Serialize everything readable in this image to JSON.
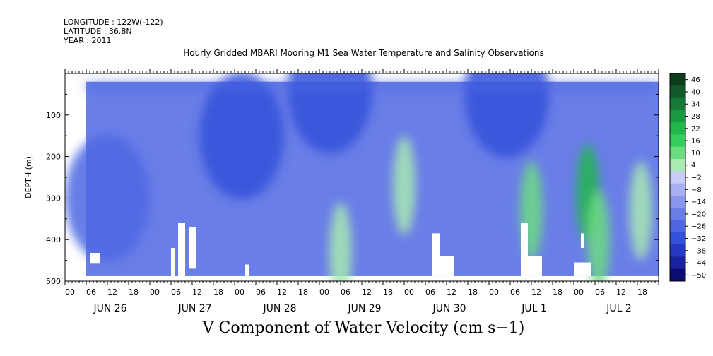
{
  "header": {
    "longitude": "LONGITUDE : 122W(-122)",
    "latitude": "LATITUDE : 36.8N",
    "year": "YEAR : 2011"
  },
  "chart_data": {
    "type": "heatmap",
    "title": "Hourly Gridded MBARI Mooring M1 Sea Water Temperature and Salinity Observations",
    "caption": "V Component of Water Velocity (cm s−1)",
    "ylabel": "DEPTH (m)",
    "xlabel": "",
    "ylim": [
      0,
      500
    ],
    "y_axis_inverted": true,
    "y_tick_values": [
      100,
      200,
      300,
      400,
      500
    ],
    "y_tick_labels": [
      "100",
      "200",
      "300",
      "400",
      "500"
    ],
    "x_range_hours": [
      0,
      168
    ],
    "x_hour_labels": [
      "00",
      "06",
      "12",
      "18",
      "00",
      "06",
      "12",
      "18",
      "00",
      "06",
      "12",
      "18",
      "00",
      "06",
      "12",
      "18",
      "00",
      "06",
      "12",
      "18",
      "00",
      "06",
      "12",
      "18",
      "00",
      "06",
      "12",
      "18"
    ],
    "x_day_labels": [
      "JUN 26",
      "JUN 27",
      "JUN 28",
      "JUN 29",
      "JUN 30",
      "JUL  1",
      "JUL  2"
    ],
    "data_extent": {
      "depth_min": 20,
      "depth_max": 488,
      "hour_start": 6,
      "hour_end": 168
    },
    "colorbar": {
      "labels": [
        "46",
        "40",
        "34",
        "28",
        "22",
        "16",
        "10",
        "4",
        "−2",
        "−8",
        "−14",
        "−20",
        "−26",
        "−32",
        "−38",
        "−44",
        "−50"
      ],
      "min": -50,
      "max": 46
    },
    "features": [
      {
        "kind": "positive",
        "hour": 148,
        "depth": 290,
        "strength": 20
      },
      {
        "kind": "positive",
        "hour": 132,
        "depth": 330,
        "strength": 12
      },
      {
        "kind": "positive",
        "hour": 96,
        "depth": 270,
        "strength": 6
      },
      {
        "kind": "positive",
        "hour": 151,
        "depth": 400,
        "strength": 8
      },
      {
        "kind": "positive",
        "hour": 163,
        "depth": 330,
        "strength": 6
      },
      {
        "kind": "positive",
        "hour": 78,
        "depth": 430,
        "strength": 5
      },
      {
        "kind": "negative",
        "hour": 50,
        "depth": 150,
        "strength": -30
      },
      {
        "kind": "negative",
        "hour": 12,
        "depth": 300,
        "strength": -24
      },
      {
        "kind": "negative",
        "hour": 75,
        "depth": 40,
        "strength": -34
      },
      {
        "kind": "negative",
        "hour": 125,
        "depth": 50,
        "strength": -32
      }
    ],
    "gaps": [
      {
        "hour_start": 7,
        "hour_end": 10,
        "depth_start": 432,
        "depth_end": 458
      },
      {
        "hour_start": 30,
        "hour_end": 31,
        "depth_start": 420,
        "depth_end": 488
      },
      {
        "hour_start": 32,
        "hour_end": 34,
        "depth_start": 360,
        "depth_end": 488
      },
      {
        "hour_start": 35,
        "hour_end": 37,
        "depth_start": 370,
        "depth_end": 470
      },
      {
        "hour_start": 51,
        "hour_end": 52,
        "depth_start": 460,
        "depth_end": 488
      },
      {
        "hour_start": 104,
        "hour_end": 106,
        "depth_start": 385,
        "depth_end": 488
      },
      {
        "hour_start": 106,
        "hour_end": 110,
        "depth_start": 440,
        "depth_end": 488
      },
      {
        "hour_start": 129,
        "hour_end": 131,
        "depth_start": 360,
        "depth_end": 488
      },
      {
        "hour_start": 131,
        "hour_end": 135,
        "depth_start": 440,
        "depth_end": 488
      },
      {
        "hour_start": 146,
        "hour_end": 147,
        "depth_start": 385,
        "depth_end": 420
      },
      {
        "hour_start": 144,
        "hour_end": 149,
        "depth_start": 455,
        "depth_end": 488
      }
    ]
  }
}
